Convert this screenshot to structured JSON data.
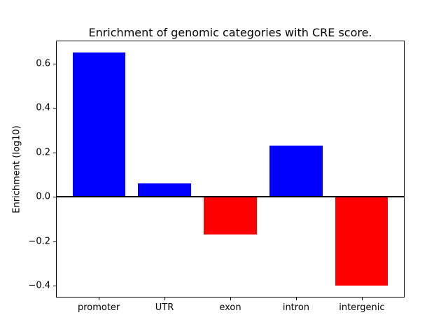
{
  "chart_data": {
    "type": "bar",
    "title": "Enrichment of genomic categories with CRE score.",
    "xlabel": "",
    "ylabel": "Enrichment (log10)",
    "categories": [
      "promoter",
      "UTR",
      "exon",
      "intron",
      "intergenic"
    ],
    "values": [
      0.65,
      0.06,
      -0.17,
      0.23,
      -0.4
    ],
    "bar_colors": [
      "#0000ff",
      "#0000ff",
      "#ff0000",
      "#0000ff",
      "#ff0000"
    ],
    "positive_color": "#0000ff",
    "negative_color": "#ff0000",
    "yticks": [
      0.6,
      0.4,
      0.2,
      0.0,
      -0.2,
      -0.4
    ],
    "ytick_labels": [
      "0.6",
      "0.4",
      "0.2",
      "0.0",
      "−0.2",
      "−0.4"
    ],
    "ylim": [
      -0.45,
      0.7
    ],
    "xlim": [
      -0.64,
      4.64
    ],
    "bar_width": 0.8,
    "zero_line": true,
    "grid": false,
    "legend": null,
    "axis_color": "#000000",
    "background_color": "#ffffff"
  }
}
